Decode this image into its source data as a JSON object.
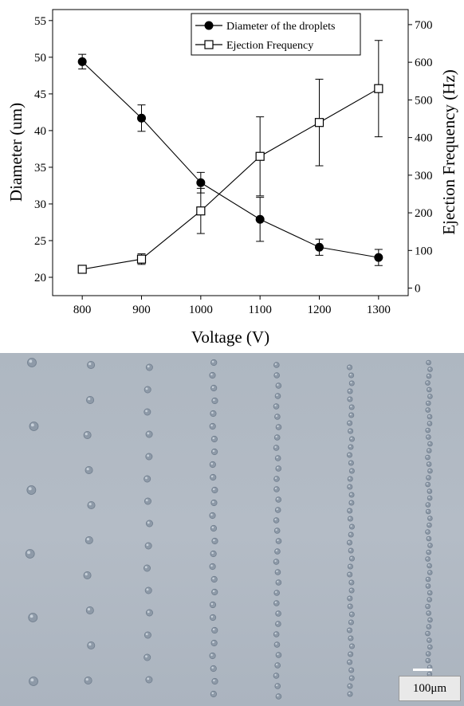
{
  "chart_data": {
    "type": "line",
    "x": [
      800,
      900,
      1000,
      1100,
      1200,
      1300
    ],
    "xlabel": "Voltage (V)",
    "ylabel_left": "Diameter (um)",
    "ylabel_right": "Ejection Frequency (Hz)",
    "xlim": [
      750,
      1350
    ],
    "ylim_left": [
      17.5,
      56.5
    ],
    "ylim_right": [
      -20,
      740
    ],
    "xticks": [
      "800",
      "900",
      "1000",
      "1100",
      "1200",
      "1300"
    ],
    "yticks_left": [
      "20",
      "25",
      "30",
      "35",
      "40",
      "45",
      "50",
      "55"
    ],
    "yticks_right": [
      "0",
      "100",
      "200",
      "300",
      "400",
      "500",
      "600",
      "700"
    ],
    "grid": false,
    "legend_position": "top-right",
    "series": [
      {
        "name": "Diameter of the droplets",
        "axis": "left",
        "marker": "filled-circle",
        "values": [
          49.4,
          41.7,
          32.9,
          27.9,
          24.1,
          22.7
        ],
        "error": [
          1.0,
          1.8,
          1.4,
          3.0,
          1.1,
          1.1
        ]
      },
      {
        "name": "Ejection Frequency",
        "axis": "right",
        "marker": "open-square",
        "values": [
          50,
          77,
          205,
          350,
          440,
          530
        ],
        "error": [
          8,
          14,
          60,
          105,
          115,
          128
        ]
      }
    ]
  },
  "micrograph": {
    "scale_label": "100μm",
    "columns": [
      {
        "x": 40,
        "spacing": 80,
        "r": 5.5
      },
      {
        "x": 112,
        "spacing": 44,
        "r": 4.6
      },
      {
        "x": 186,
        "spacing": 28,
        "r": 4.1
      },
      {
        "x": 268,
        "spacing": 16,
        "r": 3.7
      },
      {
        "x": 348,
        "spacing": 13,
        "r": 3.4
      },
      {
        "x": 440,
        "spacing": 10,
        "r": 3.1
      },
      {
        "x": 538,
        "spacing": 8.5,
        "r": 2.9
      }
    ]
  }
}
